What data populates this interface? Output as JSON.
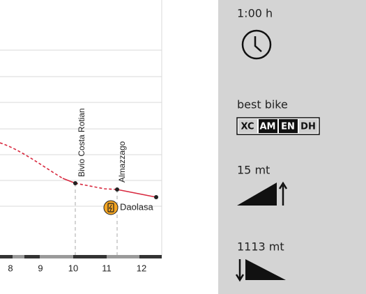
{
  "profile": {
    "x_ticks": [
      "8",
      "9",
      "10",
      "11",
      "12"
    ],
    "waypoints": [
      "Bivio Costa Rotian",
      "Almazzago"
    ],
    "poi": "Daolasa"
  },
  "sidebar": {
    "duration": "1:00 h",
    "bike_label": "best bike",
    "bike_types": [
      "XC",
      "AM",
      "EN",
      "DH"
    ],
    "ascent": "15 mt",
    "descent": "1113 mt"
  }
}
